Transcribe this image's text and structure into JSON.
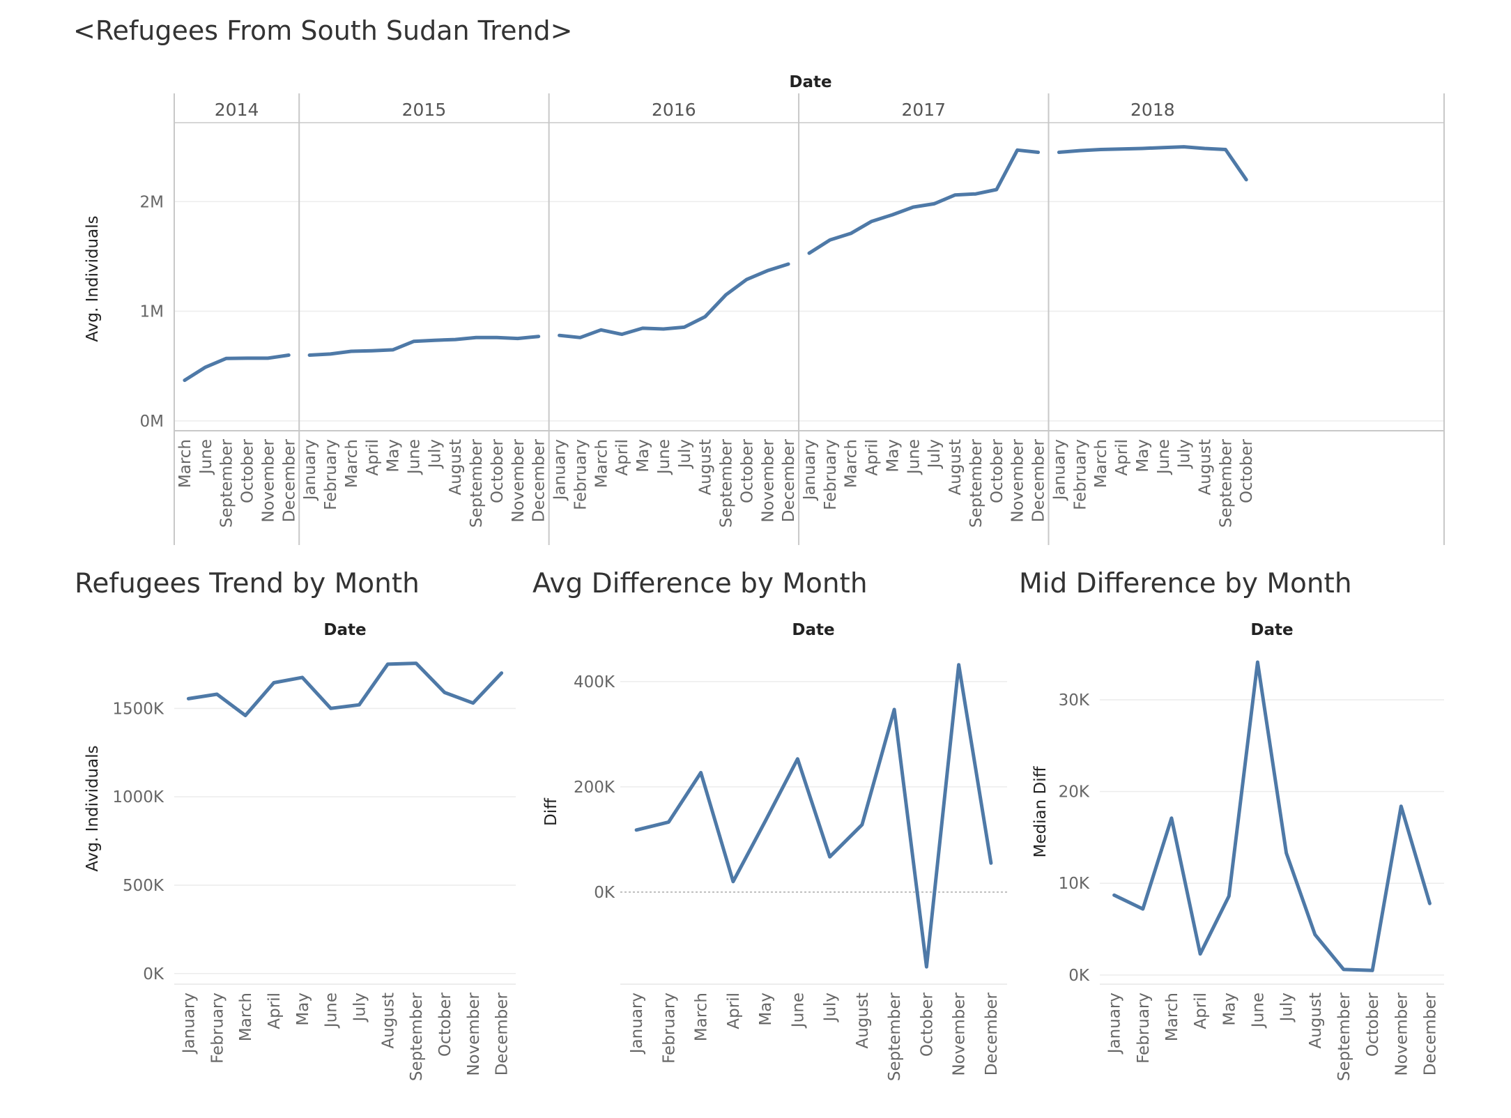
{
  "dashboard": {
    "title": "<Refugees From South Sudan Trend>",
    "sub_titles": [
      "Refugees Trend by Month",
      "Avg Difference by Month",
      "Mid Difference by Month"
    ]
  },
  "colors": {
    "line": "#4e79a7",
    "grid": "#ececec",
    "axis": "#c8c8c8",
    "zero_line": "#aaaaaa"
  },
  "chart_data": [
    {
      "type": "line",
      "title": "<Refugees From South Sudan Trend>",
      "header": "Date",
      "ylabel": "Avg. Individuals",
      "ylim": [
        -90000,
        2720000
      ],
      "yticks": [
        {
          "v": 0,
          "label": "0M"
        },
        {
          "v": 1000000,
          "label": "1M"
        },
        {
          "v": 2000000,
          "label": "2M"
        }
      ],
      "grid": true,
      "panels": [
        {
          "year": "2014",
          "months": [
            "March",
            "June",
            "September",
            "October",
            "November",
            "December"
          ],
          "values": [
            370000,
            490000,
            570000,
            572000,
            572000,
            600000
          ]
        },
        {
          "year": "2015",
          "months": [
            "January",
            "February",
            "March",
            "April",
            "May",
            "June",
            "July",
            "August",
            "September",
            "October",
            "November",
            "December"
          ],
          "values": [
            600000,
            610000,
            635000,
            640000,
            648000,
            725000,
            735000,
            742000,
            760000,
            760000,
            752000,
            770000
          ]
        },
        {
          "year": "2016",
          "months": [
            "January",
            "February",
            "March",
            "April",
            "May",
            "June",
            "July",
            "August",
            "September",
            "October",
            "November",
            "December"
          ],
          "values": [
            780000,
            760000,
            830000,
            790000,
            845000,
            838000,
            855000,
            950000,
            1150000,
            1290000,
            1370000,
            1430000
          ]
        },
        {
          "year": "2017",
          "months": [
            "January",
            "February",
            "March",
            "April",
            "May",
            "June",
            "July",
            "August",
            "September",
            "October",
            "November",
            "December"
          ],
          "values": [
            1530000,
            1650000,
            1710000,
            1820000,
            1880000,
            1950000,
            1980000,
            2060000,
            2070000,
            2110000,
            2470000,
            2450000
          ]
        },
        {
          "year": "2018",
          "months": [
            "January",
            "February",
            "March",
            "April",
            "May",
            "June",
            "July",
            "August",
            "September",
            "October"
          ],
          "values": [
            2450000,
            2465000,
            2475000,
            2480000,
            2485000,
            2493000,
            2500000,
            2485000,
            2475000,
            2200000
          ]
        }
      ]
    },
    {
      "type": "line",
      "title": "Refugees Trend by Month",
      "header": "Date",
      "ylabel": "Avg. Individuals",
      "ylim": [
        -60000,
        1860000
      ],
      "yticks": [
        {
          "v": 0,
          "label": "0K"
        },
        {
          "v": 500000,
          "label": "500K"
        },
        {
          "v": 1000000,
          "label": "1000K"
        },
        {
          "v": 1500000,
          "label": "1500K"
        }
      ],
      "grid": true,
      "categories": [
        "January",
        "February",
        "March",
        "April",
        "May",
        "June",
        "July",
        "August",
        "September",
        "October",
        "November",
        "December"
      ],
      "values": [
        1555000,
        1580000,
        1460000,
        1645000,
        1675000,
        1500000,
        1520000,
        1750000,
        1755000,
        1590000,
        1530000,
        1700000
      ]
    },
    {
      "type": "line",
      "title": "Avg Difference by Month",
      "header": "Date",
      "ylabel": "Diff",
      "ylim": [
        -175000,
        470000
      ],
      "yticks": [
        {
          "v": 0,
          "label": "0K"
        },
        {
          "v": 200000,
          "label": "200K"
        },
        {
          "v": 400000,
          "label": "400K"
        }
      ],
      "grid": true,
      "zero_line": true,
      "categories": [
        "January",
        "February",
        "March",
        "April",
        "May",
        "June",
        "July",
        "August",
        "September",
        "October",
        "November",
        "December"
      ],
      "values": [
        118000,
        133000,
        227000,
        20000,
        135000,
        253000,
        67000,
        128000,
        347000,
        -142000,
        432000,
        55000
      ]
    },
    {
      "type": "line",
      "title": "Mid Difference by Month",
      "header": "Date",
      "ylabel": "Median Diff",
      "ylim": [
        -1000,
        36000
      ],
      "yticks": [
        {
          "v": 0,
          "label": "0K"
        },
        {
          "v": 10000,
          "label": "10K"
        },
        {
          "v": 20000,
          "label": "20K"
        },
        {
          "v": 30000,
          "label": "30K"
        }
      ],
      "grid": true,
      "categories": [
        "January",
        "February",
        "March",
        "April",
        "May",
        "June",
        "July",
        "August",
        "September",
        "October",
        "November",
        "December"
      ],
      "values": [
        8700,
        7200,
        17100,
        2300,
        8600,
        34100,
        13300,
        4400,
        600,
        500,
        18400,
        7800
      ]
    }
  ]
}
